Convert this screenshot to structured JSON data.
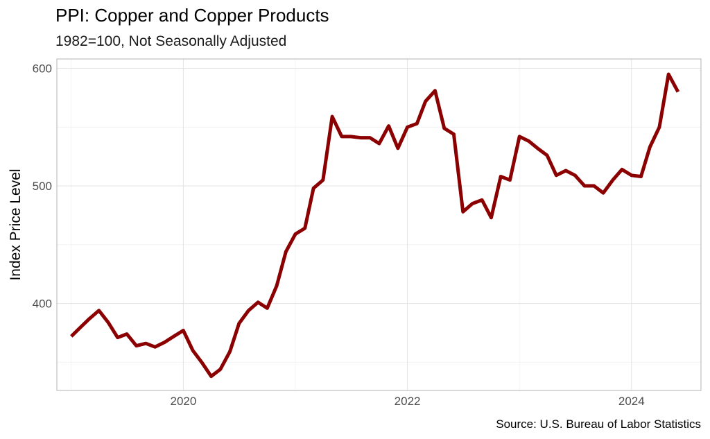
{
  "chart_data": {
    "type": "line",
    "title": "PPI: Copper and Copper Products",
    "subtitle": "1982=100, Not Seasonally Adjusted",
    "xlabel": "",
    "ylabel": "Index Price Level",
    "caption": "Source: U.S. Bureau of Labor Statistics",
    "x_ticks": [
      "2020",
      "2022",
      "2024"
    ],
    "y_ticks": [
      400,
      500,
      600
    ],
    "xlim": [
      "2018-11-15",
      "2024-08-15"
    ],
    "ylim": [
      326,
      608
    ],
    "grid": true,
    "line_color": "#8b0000",
    "series": [
      {
        "x": [
          "2019-01",
          "2019-02",
          "2019-03",
          "2019-04",
          "2019-05",
          "2019-06",
          "2019-07",
          "2019-08",
          "2019-09",
          "2019-10",
          "2019-11",
          "2019-12",
          "2020-01",
          "2020-02",
          "2020-03",
          "2020-04",
          "2020-05",
          "2020-06",
          "2020-07",
          "2020-08",
          "2020-09",
          "2020-10",
          "2020-11",
          "2020-12",
          "2021-01",
          "2021-02",
          "2021-03",
          "2021-04",
          "2021-05",
          "2021-06",
          "2021-07",
          "2021-08",
          "2021-09",
          "2021-10",
          "2021-11",
          "2021-12",
          "2022-01",
          "2022-02",
          "2022-03",
          "2022-04",
          "2022-05",
          "2022-06",
          "2022-07",
          "2022-08",
          "2022-09",
          "2022-10",
          "2022-11",
          "2022-12",
          "2023-01",
          "2023-02",
          "2023-03",
          "2023-04",
          "2023-05",
          "2023-06",
          "2023-07",
          "2023-08",
          "2023-09",
          "2023-10",
          "2023-11",
          "2023-12",
          "2024-01",
          "2024-02",
          "2024-03",
          "2024-04",
          "2024-05",
          "2024-06"
        ],
        "values": [
          372,
          380,
          387,
          394,
          384,
          371,
          374,
          364,
          366,
          363,
          367,
          372,
          377,
          360,
          350,
          338,
          344,
          359,
          383,
          394,
          401,
          396,
          415,
          444,
          459,
          464,
          498,
          505,
          559,
          542,
          542,
          541,
          541,
          536,
          551,
          532,
          550,
          553,
          572,
          581,
          549,
          544,
          478,
          485,
          488,
          473,
          508,
          505,
          542,
          538,
          532,
          526,
          509,
          513,
          509,
          500,
          500,
          494,
          505,
          514,
          509,
          508,
          533,
          550,
          595,
          580
        ]
      }
    ]
  }
}
